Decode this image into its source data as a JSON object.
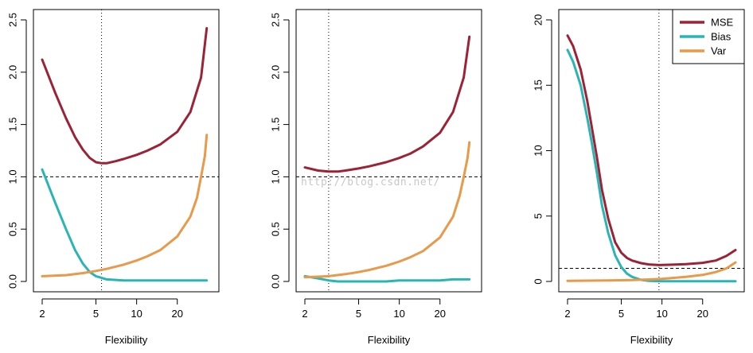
{
  "watermark": "http://blog.csdn.net/",
  "colors": {
    "MSE": "#9b2335",
    "Bias": "#2ab5b5",
    "Var": "#e8994a",
    "axis": "#000000",
    "ref": "#000000"
  },
  "legend": {
    "position": "top-right",
    "entries": [
      {
        "label": "MSE",
        "color": "#9b2335"
      },
      {
        "label": "Bias",
        "color": "#2ab5b5"
      },
      {
        "label": "Var",
        "color": "#e8994a"
      }
    ]
  },
  "chart_data": [
    {
      "type": "line",
      "xlabel": "Flexibility",
      "ylabel": "",
      "xscale": "log",
      "xlim": [
        2,
        35
      ],
      "ylim": [
        0,
        2.5
      ],
      "xticks": [
        2,
        5,
        10,
        20
      ],
      "yticks": [
        0.0,
        0.5,
        1.0,
        1.5,
        2.0,
        2.5
      ],
      "ytick_labels": [
        "0.0",
        "0.5",
        "1.0",
        "1.5",
        "2.0",
        "2.5"
      ],
      "hline": 1.0,
      "vline": 5.5,
      "legend": false,
      "series": [
        {
          "name": "MSE",
          "x": [
            2,
            2.5,
            3,
            3.5,
            4,
            4.5,
            5,
            5.5,
            6,
            7,
            8,
            10,
            12,
            15,
            20,
            25,
            30,
            33
          ],
          "y": [
            2.12,
            1.8,
            1.56,
            1.38,
            1.26,
            1.18,
            1.14,
            1.13,
            1.13,
            1.15,
            1.17,
            1.21,
            1.25,
            1.31,
            1.43,
            1.62,
            1.95,
            2.42
          ]
        },
        {
          "name": "Bias",
          "x": [
            2,
            2.5,
            3,
            3.5,
            4,
            4.5,
            5,
            6,
            8,
            10,
            15,
            20,
            25,
            30,
            33
          ],
          "y": [
            1.07,
            0.75,
            0.5,
            0.3,
            0.17,
            0.09,
            0.05,
            0.02,
            0.01,
            0.01,
            0.01,
            0.01,
            0.01,
            0.01,
            0.01
          ]
        },
        {
          "name": "Var",
          "x": [
            2,
            3,
            4,
            5,
            6,
            8,
            10,
            12,
            15,
            20,
            25,
            28,
            30,
            32,
            33
          ],
          "y": [
            0.05,
            0.06,
            0.08,
            0.1,
            0.12,
            0.16,
            0.2,
            0.24,
            0.3,
            0.43,
            0.62,
            0.8,
            1.0,
            1.2,
            1.4
          ]
        }
      ]
    },
    {
      "type": "line",
      "xlabel": "Flexibility",
      "ylabel": "",
      "xscale": "log",
      "xlim": [
        2,
        35
      ],
      "ylim": [
        0,
        2.5
      ],
      "xticks": [
        2,
        5,
        10,
        20
      ],
      "yticks": [
        0.0,
        0.5,
        1.0,
        1.5,
        2.0,
        2.5
      ],
      "ytick_labels": [
        "0.0",
        "0.5",
        "1.0",
        "1.5",
        "2.0",
        "2.5"
      ],
      "hline": 1.0,
      "vline": 3.0,
      "legend": false,
      "series": [
        {
          "name": "MSE",
          "x": [
            2,
            2.5,
            3,
            3.5,
            4,
            5,
            6,
            8,
            10,
            12,
            15,
            20,
            25,
            30,
            33
          ],
          "y": [
            1.09,
            1.06,
            1.05,
            1.05,
            1.06,
            1.08,
            1.1,
            1.14,
            1.18,
            1.22,
            1.29,
            1.42,
            1.62,
            1.95,
            2.34
          ]
        },
        {
          "name": "Bias",
          "x": [
            2,
            2.5,
            3,
            3.5,
            4,
            5,
            6,
            8,
            10,
            15,
            20,
            25,
            33
          ],
          "y": [
            0.05,
            0.03,
            0.01,
            0.0,
            0.0,
            0.0,
            0.0,
            0.0,
            0.01,
            0.01,
            0.01,
            0.02,
            0.02
          ]
        },
        {
          "name": "Var",
          "x": [
            2,
            3,
            4,
            5,
            6,
            8,
            10,
            12,
            15,
            20,
            25,
            28,
            30,
            32,
            33
          ],
          "y": [
            0.04,
            0.05,
            0.07,
            0.09,
            0.11,
            0.15,
            0.19,
            0.23,
            0.29,
            0.42,
            0.62,
            0.82,
            1.0,
            1.18,
            1.33
          ]
        }
      ]
    },
    {
      "type": "line",
      "xlabel": "Flexibility",
      "ylabel": "",
      "xscale": "log",
      "xlim": [
        2,
        35
      ],
      "ylim": [
        0,
        20
      ],
      "xticks": [
        2,
        5,
        10,
        20
      ],
      "yticks": [
        0,
        5,
        10,
        15,
        20
      ],
      "ytick_labels": [
        "0",
        "5",
        "10",
        "15",
        "20"
      ],
      "hline": 1.0,
      "vline": 9.5,
      "legend": true,
      "series": [
        {
          "name": "MSE",
          "x": [
            2,
            2.2,
            2.5,
            2.8,
            3,
            3.3,
            3.6,
            4,
            4.5,
            5,
            5.5,
            6,
            7,
            8,
            9.5,
            12,
            15,
            20,
            25,
            30,
            35
          ],
          "y": [
            18.8,
            18.0,
            16.2,
            13.8,
            12.0,
            9.5,
            7.0,
            4.8,
            3.0,
            2.2,
            1.8,
            1.6,
            1.4,
            1.3,
            1.25,
            1.28,
            1.32,
            1.42,
            1.6,
            1.95,
            2.4
          ]
        },
        {
          "name": "Bias",
          "x": [
            2,
            2.2,
            2.5,
            2.8,
            3,
            3.3,
            3.6,
            4,
            4.5,
            5,
            5.5,
            6,
            7,
            8,
            10,
            15,
            20,
            35
          ],
          "y": [
            17.7,
            16.8,
            15.0,
            12.5,
            10.8,
            8.3,
            5.8,
            3.7,
            2.0,
            1.1,
            0.6,
            0.35,
            0.12,
            0.05,
            0.02,
            0.01,
            0.01,
            0.01
          ]
        },
        {
          "name": "Var",
          "x": [
            2,
            4,
            6,
            8,
            10,
            15,
            20,
            25,
            30,
            35
          ],
          "y": [
            0.05,
            0.08,
            0.11,
            0.15,
            0.2,
            0.35,
            0.5,
            0.72,
            1.0,
            1.45
          ]
        }
      ]
    }
  ]
}
